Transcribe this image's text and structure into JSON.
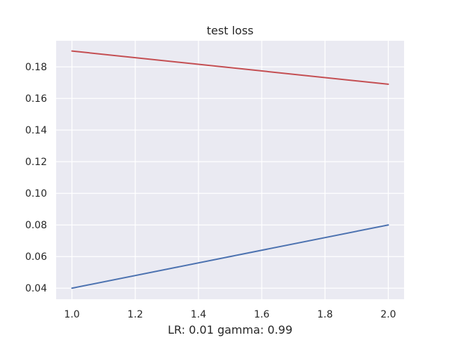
{
  "chart_data": {
    "type": "line",
    "title": "test loss",
    "xlabel": "LR: 0.01 gamma: 0.99",
    "ylabel": "",
    "xlim": [
      0.95,
      2.05
    ],
    "ylim": [
      0.033,
      0.1965
    ],
    "xticks": [
      1.0,
      1.2,
      1.4,
      1.6,
      1.8,
      2.0
    ],
    "xtick_labels": [
      "1.0",
      "1.2",
      "1.4",
      "1.6",
      "1.8",
      "2.0"
    ],
    "yticks": [
      0.04,
      0.06,
      0.08,
      0.1,
      0.12,
      0.14,
      0.16,
      0.18
    ],
    "ytick_labels": [
      "0.04",
      "0.06",
      "0.08",
      "0.10",
      "0.12",
      "0.14",
      "0.16",
      "0.18"
    ],
    "grid": true,
    "background": "#eaeaf2",
    "grid_color": "#ffffff",
    "series": [
      {
        "color": "#c44e52",
        "x": [
          1.0,
          2.0
        ],
        "y": [
          0.19,
          0.169
        ]
      },
      {
        "color": "#4c72b0",
        "x": [
          1.0,
          2.0
        ],
        "y": [
          0.04,
          0.08
        ]
      }
    ]
  }
}
